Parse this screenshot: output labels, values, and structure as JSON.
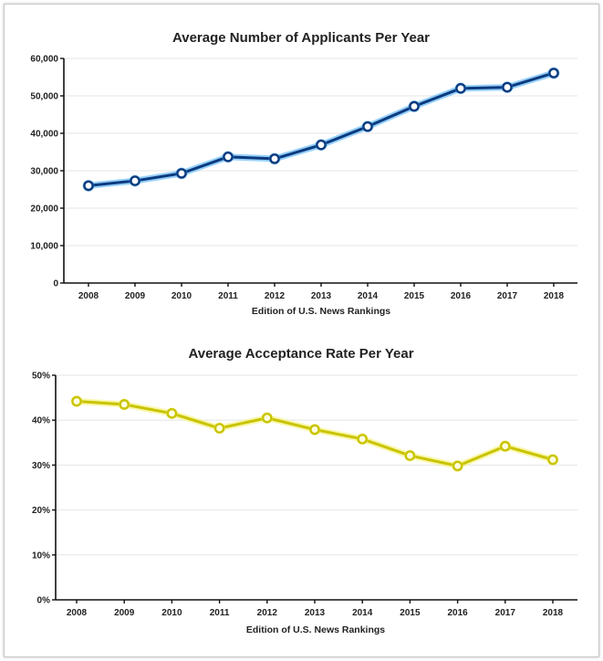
{
  "chart_data": [
    {
      "type": "line",
      "title": "Average Number of Applicants Per Year",
      "xlabel": "Edition of U.S. News Rankings",
      "ylabel": "",
      "x": [
        "2008",
        "2009",
        "2010",
        "2011",
        "2012",
        "2013",
        "2014",
        "2015",
        "2016",
        "2017",
        "2018"
      ],
      "series": [
        {
          "values": [
            26000,
            27300,
            29300,
            33700,
            33200,
            36900,
            41800,
            47200,
            52000,
            52300,
            56100
          ]
        }
      ],
      "ylim": [
        0,
        60000
      ],
      "yticks": [
        "0",
        "10,000",
        "20,000",
        "30,000",
        "40,000",
        "50,000",
        "60,000"
      ],
      "ytick_values": [
        0,
        10000,
        20000,
        30000,
        40000,
        50000,
        60000
      ],
      "grid": true,
      "line_color": "#0b3a7e",
      "glow_color": "#3fa9f5",
      "marker_fill": "#ffffff"
    },
    {
      "type": "line",
      "title": "Average Acceptance Rate Per Year",
      "xlabel": "Edition of U.S. News Rankings",
      "ylabel": "",
      "x": [
        "2008",
        "2009",
        "2010",
        "2011",
        "2012",
        "2013",
        "2014",
        "2015",
        "2016",
        "2017",
        "2018"
      ],
      "series": [
        {
          "values": [
            44.2,
            43.5,
            41.5,
            38.2,
            40.5,
            37.9,
            35.8,
            32.1,
            29.8,
            34.2,
            31.2
          ]
        }
      ],
      "ylim": [
        0,
        50
      ],
      "yticks": [
        "0%",
        "10%",
        "20%",
        "30%",
        "40%",
        "50%"
      ],
      "ytick_values": [
        0,
        10,
        20,
        30,
        40,
        50
      ],
      "grid": true,
      "line_color": "#c9c400",
      "glow_color": "#f4f06a",
      "marker_fill": "#fffde0"
    }
  ]
}
